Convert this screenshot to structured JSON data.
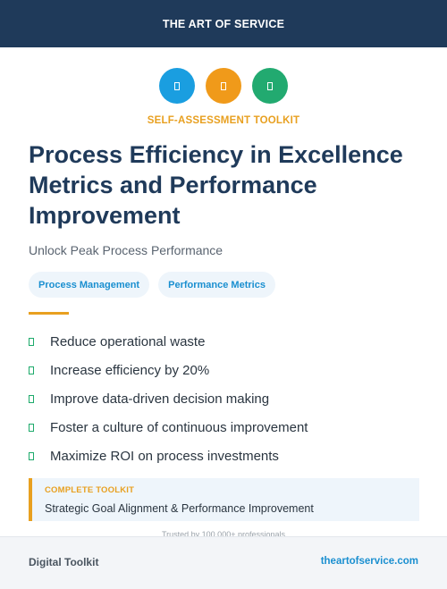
{
  "header": {
    "title": "THE ART OF SERVICE"
  },
  "icons": [
    {
      "name": "document-icon",
      "color": "#1a9ee0"
    },
    {
      "name": "document-icon",
      "color": "#f09a1a"
    },
    {
      "name": "document-icon",
      "color": "#22aa70"
    }
  ],
  "kicker": "SELF-ASSESSMENT TOOLKIT",
  "title": "Process Efficiency in Excellence Metrics and Performance Improvement",
  "subtitle": "Unlock Peak Process Performance",
  "tags": [
    "Process Management",
    "Performance Metrics"
  ],
  "benefits": [
    "Reduce operational waste",
    "Increase efficiency by 20%",
    "Improve data-driven decision making",
    "Foster a culture of continuous improvement",
    "Maximize ROI on process investments"
  ],
  "callout": {
    "label": "COMPLETE TOOLKIT",
    "text": "Strategic Goal Alignment & Performance Improvement"
  },
  "trusted": "Trusted by 100,000+ professionals",
  "footer": {
    "left": "Digital Toolkit",
    "right": "theartofservice.com"
  },
  "colors": {
    "navy": "#1f3a5a",
    "accent_orange": "#e8a020",
    "link_blue": "#1a8fd0",
    "check_green": "#1daa6b"
  }
}
